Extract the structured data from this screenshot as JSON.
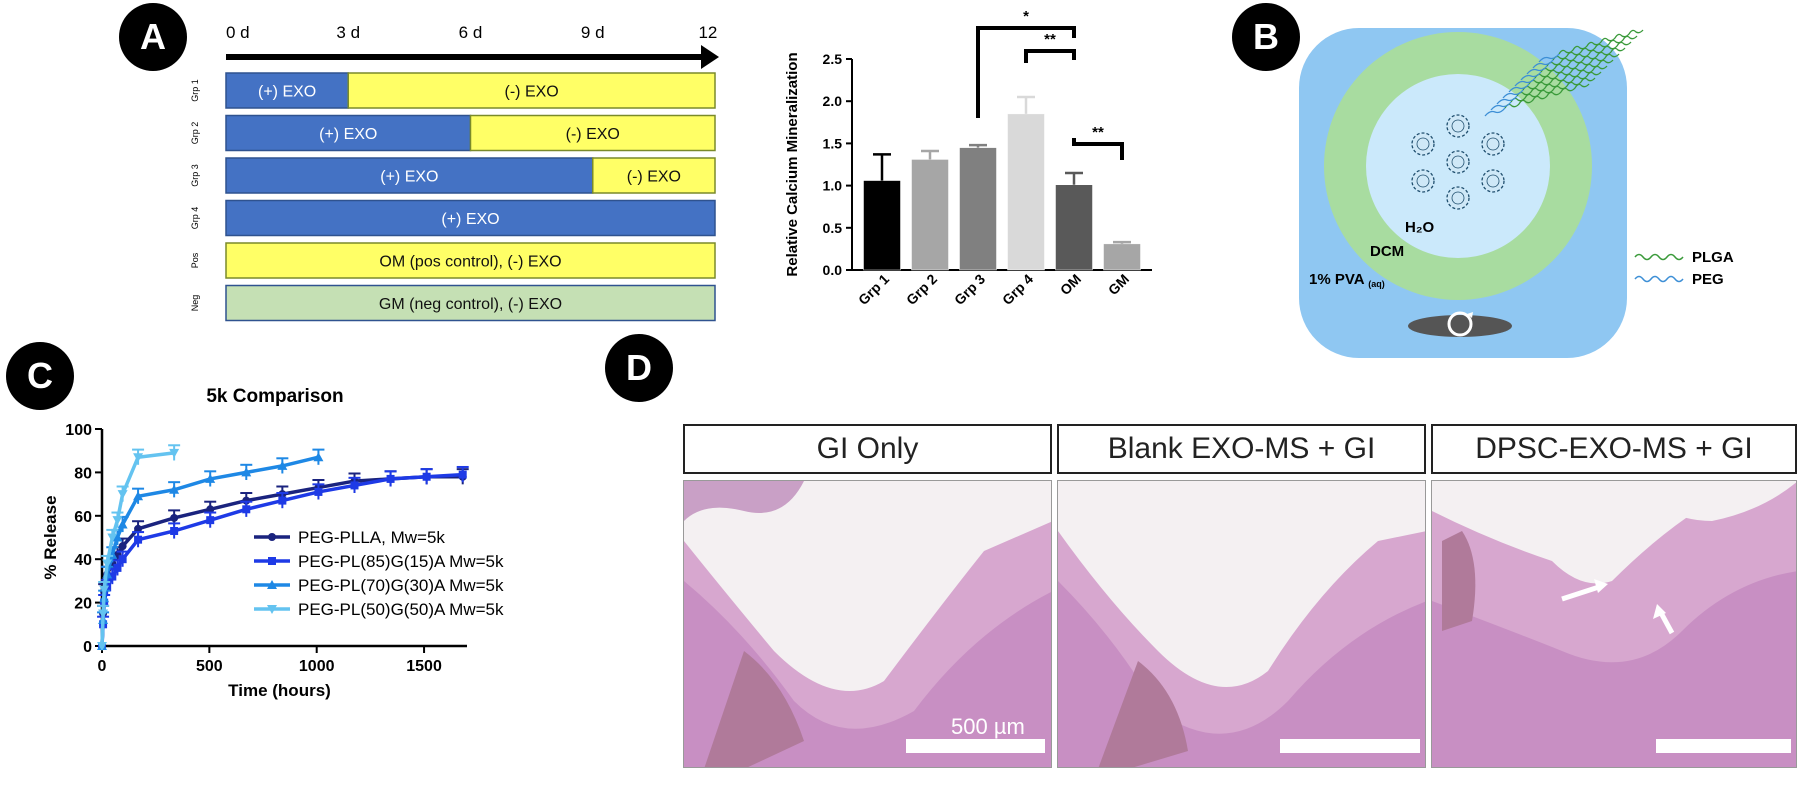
{
  "badges": {
    "a": "A",
    "b": "B",
    "c": "C",
    "d": "D"
  },
  "timeline": {
    "ticks": [
      "0 d",
      "3 d",
      "6 d",
      "9 d",
      "12 d"
    ],
    "rows": [
      {
        "group": "Grp 1",
        "segments": [
          {
            "label": "(+) EXO",
            "days": 3,
            "kind": "plus"
          },
          {
            "label": "(-) EXO",
            "days": 9,
            "kind": "minus"
          }
        ]
      },
      {
        "group": "Grp 2",
        "segments": [
          {
            "label": "(+) EXO",
            "days": 6,
            "kind": "plus"
          },
          {
            "label": "(-) EXO",
            "days": 6,
            "kind": "minus"
          }
        ]
      },
      {
        "group": "Grp 3",
        "segments": [
          {
            "label": "(+) EXO",
            "days": 9,
            "kind": "plus"
          },
          {
            "label": "(-) EXO",
            "days": 3,
            "kind": "minus"
          }
        ]
      },
      {
        "group": "Grp 4",
        "segments": [
          {
            "label": "(+) EXO",
            "days": 12,
            "kind": "plus"
          }
        ]
      },
      {
        "group": "Pos",
        "segments": [
          {
            "label": "OM (pos control), (-) EXO",
            "days": 12,
            "kind": "minus"
          }
        ]
      },
      {
        "group": "Neg",
        "segments": [
          {
            "label": "GM (neg control), (-) EXO",
            "days": 12,
            "kind": "neg"
          }
        ]
      }
    ],
    "colors": {
      "plus": "#4472c4",
      "minus": "#ffff66",
      "neg": "#c5e0b4"
    }
  },
  "schematic": {
    "label_h2o": "H₂O",
    "label_dcm": "DCM",
    "label_pva": "1% PVA",
    "label_pva_sub": "(aq)",
    "legend_plga": "PLGA",
    "legend_peg": "PEG",
    "colors": {
      "outer": "#8fc7f2",
      "shell": "#a8dca0",
      "core": "#cbe9fb",
      "plga": "#3a9a3a",
      "peg": "#3d8fd6"
    }
  },
  "histology": {
    "headers": [
      "GI Only",
      "Blank EXO-MS + GI",
      "DPSC-EXO-MS + GI"
    ],
    "scale_label": "500 µm"
  },
  "chart_data": [
    {
      "type": "bar",
      "title": "",
      "xlabel": "",
      "ylabel": "Relative Calcium Mineralization",
      "ylim": [
        0,
        2.5
      ],
      "yticks": [
        "0.0",
        "0.5",
        "1.0",
        "1.5",
        "2.0",
        "2.5"
      ],
      "categories": [
        "Grp 1",
        "Grp 2",
        "Grp 3",
        "Grp 4",
        "OM",
        "GM"
      ],
      "values": [
        1.06,
        1.31,
        1.45,
        1.85,
        1.01,
        0.31
      ],
      "errors": [
        0.31,
        0.1,
        0.03,
        0.2,
        0.14,
        0.02
      ],
      "colors": [
        "#000000",
        "#a6a6a6",
        "#808080",
        "#d9d9d9",
        "#595959",
        "#a6a6a6"
      ],
      "significance": [
        {
          "from": "Grp 3",
          "to": "OM",
          "label": "*"
        },
        {
          "from": "Grp 4",
          "to": "OM",
          "label": "**"
        },
        {
          "from": "OM",
          "to": "GM",
          "label": "**"
        }
      ]
    },
    {
      "type": "line",
      "title": "5k Comparison",
      "xlabel": "Time (hours)",
      "ylabel": "% Release",
      "xlim": [
        0,
        1700
      ],
      "ylim": [
        0,
        100
      ],
      "xticks": [
        "0",
        "500",
        "1000",
        "1500"
      ],
      "yticks": [
        "0",
        "20",
        "40",
        "60",
        "80",
        "100"
      ],
      "series": [
        {
          "name": "PEG-PLLA, Mw=5k",
          "color": "#1a237e",
          "marker": "circle",
          "x": [
            0,
            5,
            10,
            24,
            48,
            72,
            96,
            168,
            336,
            504,
            672,
            840,
            1008,
            1176,
            1344,
            1512,
            1680
          ],
          "y": [
            0,
            15,
            25,
            33,
            38,
            42,
            46,
            54,
            59,
            63,
            67,
            70,
            73,
            76,
            77,
            78,
            78
          ]
        },
        {
          "name": "PEG-PL(85)G(15)A Mw=5k",
          "color": "#1e3ae6",
          "marker": "square",
          "x": [
            0,
            5,
            10,
            24,
            48,
            72,
            96,
            168,
            336,
            504,
            672,
            840,
            1008,
            1176,
            1344,
            1512,
            1680
          ],
          "y": [
            0,
            10,
            20,
            27,
            32,
            36,
            40,
            49,
            53,
            58,
            63,
            67,
            71,
            74,
            77,
            78,
            79
          ]
        },
        {
          "name": "PEG-PL(70)G(30)A Mw=5k",
          "color": "#1e88e5",
          "marker": "triangle",
          "x": [
            0,
            5,
            10,
            24,
            48,
            72,
            96,
            168,
            336,
            504,
            672,
            840,
            1008
          ],
          "y": [
            0,
            12,
            22,
            33,
            42,
            50,
            56,
            69,
            72,
            77,
            80,
            83,
            87
          ]
        },
        {
          "name": "PEG-PL(50)G(50)A Mw=5k",
          "color": "#64c3f0",
          "marker": "triangle-down",
          "x": [
            0,
            5,
            10,
            24,
            48,
            72,
            96,
            168,
            336
          ],
          "y": [
            0,
            15,
            26,
            38,
            50,
            58,
            70,
            87,
            89
          ]
        }
      ]
    }
  ]
}
